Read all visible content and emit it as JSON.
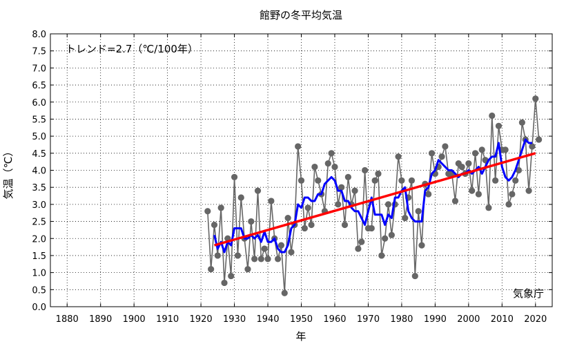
{
  "chart_data": {
    "type": "line",
    "title": "館野の冬平均気温",
    "xlabel": "年",
    "ylabel": "気温（℃）",
    "annotation": "トレンド=2.7（℃/100年）",
    "credit": "気象庁",
    "xlim": [
      1875,
      2025
    ],
    "ylim": [
      0.0,
      8.0
    ],
    "x_ticks": [
      1880,
      1890,
      1900,
      1910,
      1920,
      1930,
      1940,
      1950,
      1960,
      1970,
      1980,
      1990,
      2000,
      2010,
      2020
    ],
    "y_ticks": [
      "0.0",
      "0.5",
      "1.0",
      "1.5",
      "2.0",
      "2.5",
      "3.0",
      "3.5",
      "4.0",
      "4.5",
      "5.0",
      "5.5",
      "6.0",
      "6.5",
      "7.0",
      "7.5",
      "8.0"
    ],
    "grid": true,
    "series": [
      {
        "role": "annual",
        "color": "#666666",
        "x": [
          1922,
          1923,
          1924,
          1925,
          1926,
          1927,
          1928,
          1929,
          1930,
          1931,
          1932,
          1933,
          1934,
          1935,
          1936,
          1937,
          1938,
          1939,
          1940,
          1941,
          1942,
          1943,
          1944,
          1945,
          1946,
          1947,
          1948,
          1949,
          1950,
          1951,
          1952,
          1953,
          1954,
          1955,
          1956,
          1957,
          1958,
          1959,
          1960,
          1961,
          1962,
          1963,
          1964,
          1965,
          1966,
          1967,
          1968,
          1969,
          1970,
          1971,
          1972,
          1973,
          1974,
          1975,
          1976,
          1977,
          1978,
          1979,
          1980,
          1981,
          1982,
          1983,
          1984,
          1985,
          1986,
          1987,
          1988,
          1989,
          1990,
          1991,
          1992,
          1993,
          1994,
          1995,
          1996,
          1997,
          1998,
          1999,
          2000,
          2001,
          2002,
          2003,
          2004,
          2005,
          2006,
          2007,
          2008,
          2009,
          2010,
          2011,
          2012,
          2013,
          2014,
          2015,
          2016,
          2017,
          2018,
          2019,
          2020,
          2021
        ],
        "y": [
          2.8,
          1.1,
          2.4,
          1.5,
          2.9,
          0.7,
          2.0,
          0.9,
          3.8,
          1.5,
          3.2,
          2.0,
          1.1,
          2.5,
          1.4,
          3.4,
          1.4,
          1.7,
          1.4,
          3.1,
          2.0,
          1.4,
          1.8,
          0.4,
          2.6,
          1.6,
          2.4,
          4.7,
          3.7,
          2.3,
          2.9,
          2.4,
          4.1,
          3.7,
          3.3,
          2.8,
          4.2,
          4.5,
          4.1,
          3.0,
          3.5,
          2.4,
          3.8,
          3.0,
          3.4,
          1.7,
          1.9,
          4.0,
          2.3,
          2.3,
          3.7,
          3.9,
          1.5,
          2.0,
          3.0,
          2.1,
          3.0,
          4.4,
          3.7,
          2.6,
          3.2,
          3.7,
          0.9,
          2.8,
          1.8,
          3.6,
          3.3,
          4.5,
          3.9,
          4.1,
          4.4,
          4.7,
          3.9,
          3.9,
          3.1,
          4.2,
          4.1,
          3.9,
          4.2,
          3.4,
          4.5,
          3.3,
          4.6,
          4.3,
          2.9,
          5.6,
          3.7,
          5.3,
          4.6,
          4.6,
          3.0,
          3.3,
          3.7,
          4.0,
          5.4,
          4.9,
          3.4,
          4.7,
          6.1,
          4.9
        ]
      },
      {
        "role": "5-year running mean",
        "color": "#0000ff",
        "x": [
          1924,
          1925,
          1926,
          1927,
          1928,
          1929,
          1930,
          1931,
          1932,
          1933,
          1934,
          1935,
          1936,
          1937,
          1938,
          1939,
          1940,
          1941,
          1942,
          1943,
          1944,
          1945,
          1946,
          1947,
          1948,
          1949,
          1950,
          1951,
          1952,
          1953,
          1954,
          1955,
          1956,
          1957,
          1958,
          1959,
          1960,
          1961,
          1962,
          1963,
          1964,
          1965,
          1966,
          1967,
          1968,
          1969,
          1970,
          1971,
          1972,
          1973,
          1974,
          1975,
          1976,
          1977,
          1978,
          1979,
          1980,
          1981,
          1982,
          1983,
          1984,
          1985,
          1986,
          1987,
          1988,
          1989,
          1990,
          1991,
          1992,
          1993,
          1994,
          1995,
          1996,
          1997,
          1998,
          1999,
          2000,
          2001,
          2002,
          2003,
          2004,
          2005,
          2006,
          2007,
          2008,
          2009,
          2010,
          2011,
          2012,
          2013,
          2014,
          2015,
          2016,
          2017,
          2018,
          2019
        ],
        "y": [
          2.1,
          1.7,
          1.9,
          1.6,
          1.9,
          1.8,
          2.3,
          2.3,
          2.3,
          2.0,
          2.0,
          2.1,
          2.0,
          2.1,
          1.9,
          2.2,
          1.9,
          1.9,
          2.0,
          1.7,
          1.6,
          1.6,
          1.8,
          2.3,
          2.4,
          3.0,
          2.9,
          3.2,
          3.2,
          3.1,
          3.1,
          3.3,
          3.3,
          3.6,
          3.7,
          3.8,
          3.7,
          3.4,
          3.4,
          3.1,
          3.1,
          2.9,
          2.8,
          2.8,
          2.6,
          2.4,
          2.8,
          3.2,
          2.7,
          2.7,
          2.7,
          2.4,
          2.7,
          2.6,
          3.2,
          3.2,
          3.4,
          3.5,
          2.8,
          2.6,
          2.5,
          2.5,
          2.5,
          3.4,
          3.5,
          3.9,
          4.0,
          4.3,
          4.2,
          4.1,
          4.0,
          4.0,
          3.9,
          3.8,
          3.9,
          3.9,
          4.0,
          3.9,
          4.0,
          4.1,
          3.9,
          4.1,
          4.3,
          4.4,
          4.4,
          4.8,
          4.1,
          3.8,
          3.7,
          3.8,
          4.0,
          4.3,
          4.6,
          4.9,
          4.8,
          4.8
        ]
      },
      {
        "role": "trend",
        "color": "#ff0000",
        "x": [
          1924,
          2020
        ],
        "y": [
          1.8,
          4.5
        ]
      }
    ]
  }
}
